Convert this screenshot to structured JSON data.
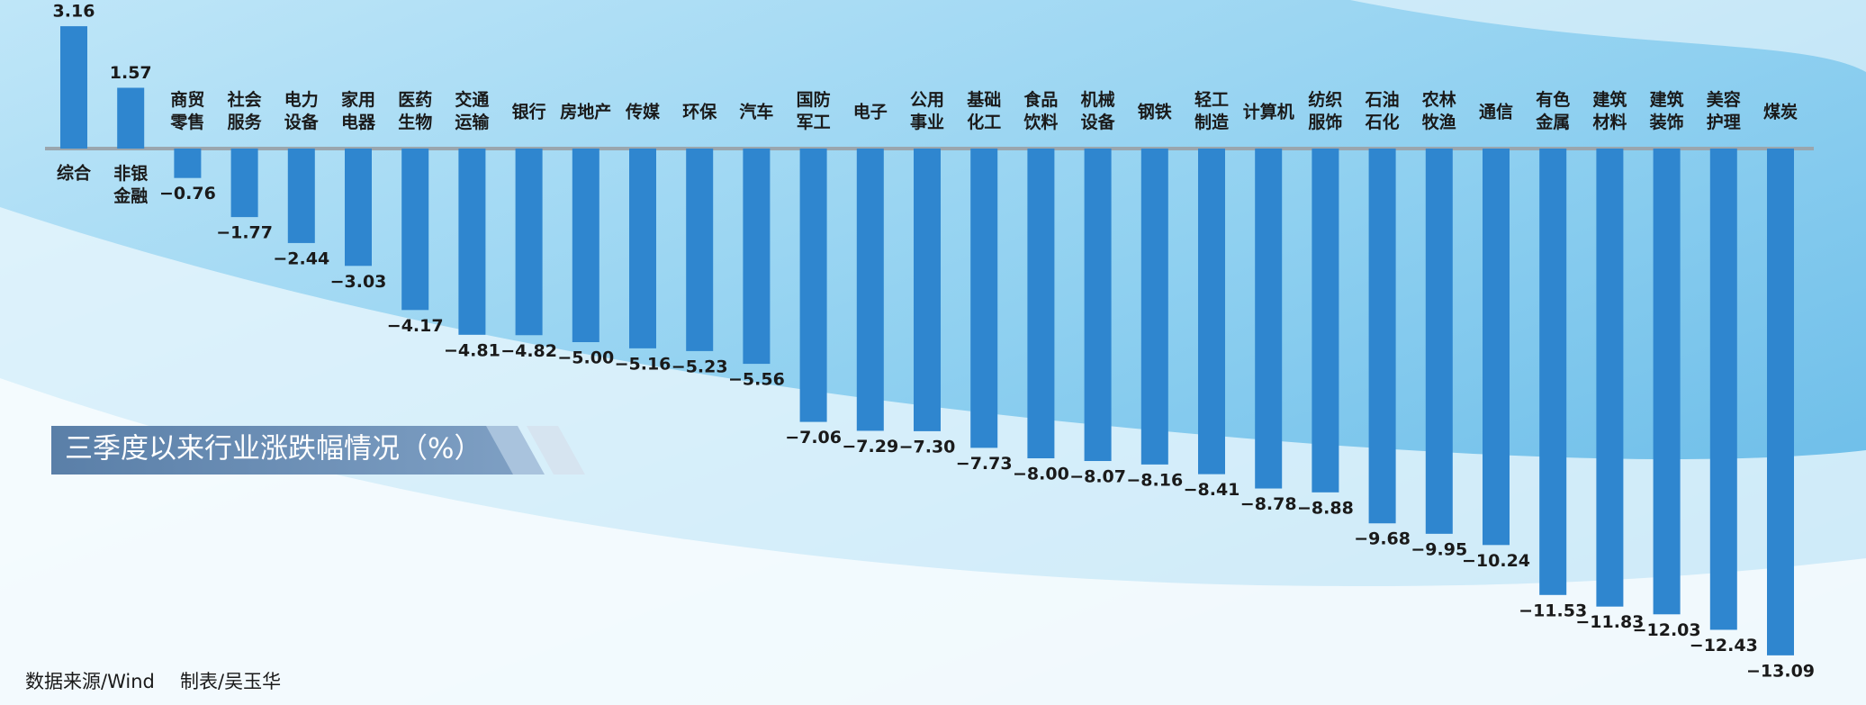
{
  "chart_data": {
    "type": "bar",
    "title": "三季度以来行业涨跌幅情况（%）",
    "source": "数据来源/Wind",
    "credit": "制表/吴玉华",
    "color": "#2f86cf",
    "categories": [
      "综合",
      "非银金融",
      "商贸零售",
      "社会服务",
      "电力设备",
      "家用电器",
      "医药生物",
      "交通运输",
      "银行",
      "房地产",
      "传媒",
      "环保",
      "汽车",
      "国防军工",
      "电子",
      "公用事业",
      "基础化工",
      "食品饮料",
      "机械设备",
      "钢铁",
      "轻工制造",
      "计算机",
      "纺织服饰",
      "石油石化",
      "农林牧渔",
      "通信",
      "有色金属",
      "建筑材料",
      "建筑装饰",
      "美容护理",
      "煤炭"
    ],
    "values": [
      3.16,
      1.57,
      -0.76,
      -1.77,
      -2.44,
      -3.03,
      -4.17,
      -4.81,
      -4.82,
      -5.0,
      -5.16,
      -5.23,
      -5.56,
      -7.06,
      -7.29,
      -7.3,
      -7.73,
      -8.0,
      -8.07,
      -8.16,
      -8.41,
      -8.78,
      -8.88,
      -9.68,
      -9.95,
      -10.24,
      -11.53,
      -11.83,
      -12.03,
      -12.43,
      -13.09
    ],
    "value_labels": [
      "3.16",
      "1.57",
      "−0.76",
      "−1.77",
      "−2.44",
      "−3.03",
      "−4.17",
      "−4.81",
      "−4.82",
      "−5.00",
      "−5.16",
      "−5.23",
      "−5.56",
      "−7.06",
      "−7.29",
      "−7.30",
      "−7.73",
      "−8.00",
      "−8.07",
      "−8.16",
      "−8.41",
      "−8.78",
      "−8.88",
      "−9.68",
      "−9.95",
      "−10.24",
      "−11.53",
      "−11.83",
      "−12.03",
      "−12.43",
      "−13.09"
    ]
  }
}
